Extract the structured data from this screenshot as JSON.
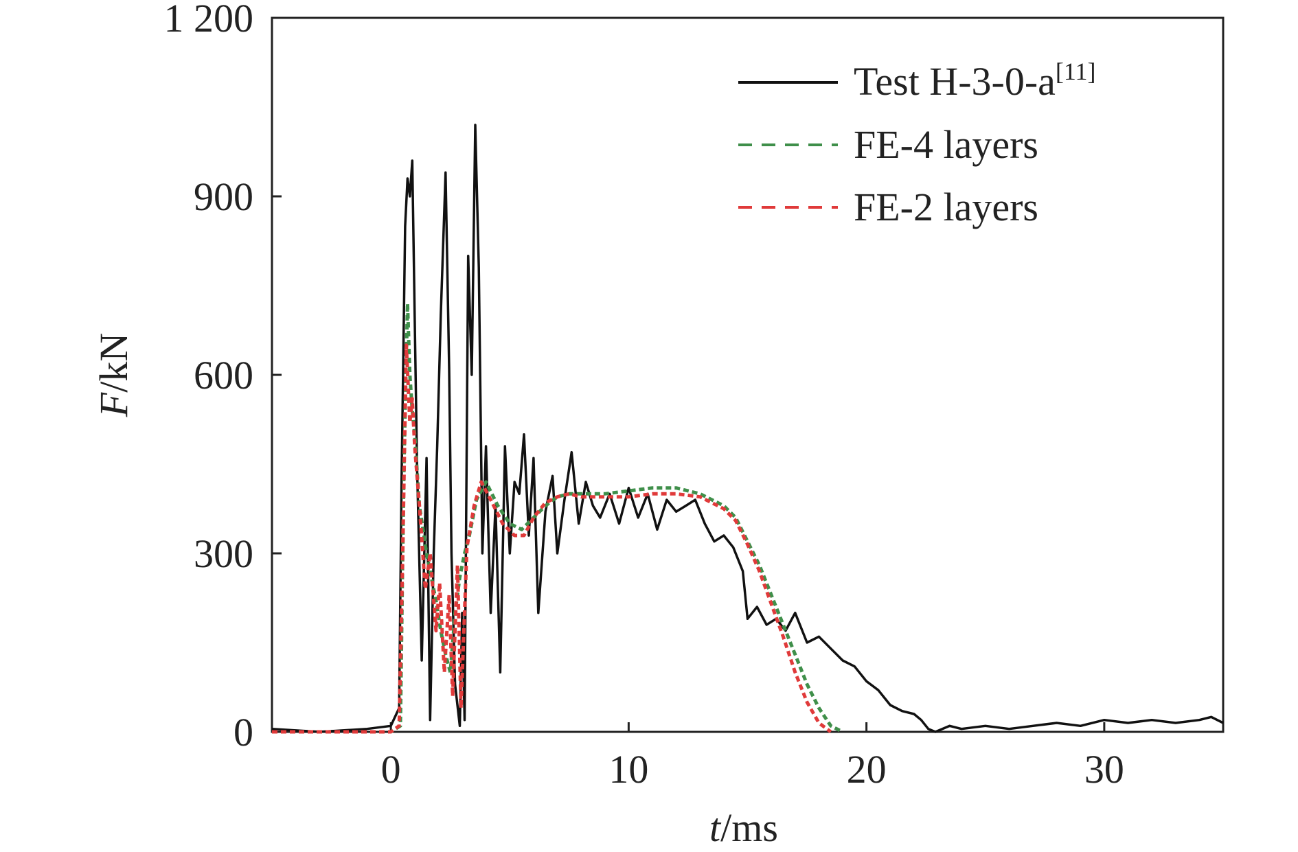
{
  "chart_data": {
    "type": "line",
    "title": "",
    "xlabel": {
      "var": "t",
      "unit": "/ms"
    },
    "ylabel": {
      "var": "F",
      "unit": "/kN"
    },
    "xlim": [
      -5,
      35
    ],
    "ylim": [
      0,
      1200
    ],
    "x_ticks": [
      0,
      10,
      20,
      30
    ],
    "x_tick_labels": [
      "0",
      "10",
      "20",
      "30"
    ],
    "y_ticks": [
      0,
      300,
      600,
      900,
      1200
    ],
    "y_tick_labels": [
      "0",
      "300",
      "600",
      "900",
      "1 200"
    ],
    "grid": false,
    "legend_position": "top-right",
    "series": [
      {
        "name": "Test H-3-0-a",
        "name_superscript": "[11]",
        "color": "#111111",
        "style": "solid",
        "x": [
          -5,
          -3,
          -1,
          0,
          0.35,
          0.45,
          0.6,
          0.7,
          0.8,
          0.9,
          1.0,
          1.1,
          1.3,
          1.5,
          1.65,
          1.8,
          1.95,
          2.1,
          2.3,
          2.45,
          2.55,
          2.7,
          2.9,
          3.0,
          3.1,
          3.25,
          3.4,
          3.55,
          3.7,
          3.85,
          4.0,
          4.2,
          4.4,
          4.6,
          4.8,
          5.0,
          5.2,
          5.4,
          5.6,
          5.8,
          6.0,
          6.2,
          6.5,
          6.8,
          7.0,
          7.3,
          7.6,
          7.9,
          8.2,
          8.5,
          8.8,
          9.2,
          9.6,
          10.0,
          10.4,
          10.8,
          11.2,
          11.6,
          12.0,
          12.4,
          12.8,
          13.2,
          13.6,
          14.0,
          14.4,
          14.8,
          15.0,
          15.4,
          15.8,
          16.2,
          16.6,
          17.0,
          17.5,
          18.0,
          18.5,
          19.0,
          19.5,
          20.0,
          20.5,
          21.0,
          21.5,
          22.0,
          22.3,
          22.6,
          22.9,
          23.5,
          24.0,
          25.0,
          26.0,
          27.0,
          28.0,
          29.0,
          30.0,
          31.0,
          32.0,
          33.0,
          34.0,
          34.5,
          35.0
        ],
        "y": [
          5,
          0,
          5,
          10,
          40,
          420,
          850,
          930,
          900,
          960,
          700,
          450,
          120,
          460,
          20,
          300,
          480,
          700,
          940,
          610,
          300,
          80,
          10,
          200,
          20,
          800,
          600,
          1020,
          780,
          300,
          480,
          200,
          380,
          100,
          480,
          300,
          420,
          400,
          500,
          330,
          460,
          200,
          370,
          430,
          300,
          390,
          470,
          350,
          420,
          380,
          360,
          400,
          350,
          410,
          360,
          400,
          340,
          390,
          370,
          380,
          390,
          350,
          320,
          330,
          310,
          270,
          190,
          210,
          180,
          190,
          170,
          200,
          150,
          160,
          140,
          120,
          110,
          85,
          70,
          45,
          35,
          30,
          20,
          5,
          0,
          10,
          5,
          10,
          5,
          10,
          15,
          10,
          20,
          15,
          20,
          15,
          20,
          25,
          15
        ]
      },
      {
        "name": "FE-4 layers",
        "color": "#3f8f4a",
        "style": "dashed",
        "x": [
          -5,
          0,
          0.4,
          0.55,
          0.7,
          0.8,
          0.9,
          1.0,
          1.2,
          1.5,
          1.7,
          1.9,
          2.1,
          2.3,
          2.5,
          2.7,
          2.9,
          3.1,
          3.3,
          3.6,
          4.0,
          4.5,
          5.0,
          5.5,
          6.0,
          6.5,
          7.0,
          7.5,
          8.0,
          9.0,
          10.0,
          11.0,
          12.0,
          13.0,
          14.0,
          14.5,
          15.0,
          15.5,
          16.0,
          16.5,
          17.0,
          17.5,
          18.0,
          18.5,
          19.0
        ],
        "y": [
          0,
          0,
          10,
          450,
          720,
          600,
          540,
          500,
          380,
          300,
          260,
          220,
          170,
          130,
          100,
          200,
          260,
          300,
          330,
          390,
          420,
          380,
          350,
          340,
          360,
          380,
          395,
          400,
          400,
          400,
          405,
          410,
          410,
          400,
          380,
          360,
          320,
          280,
          230,
          180,
          130,
          80,
          40,
          10,
          0
        ]
      },
      {
        "name": "FE-2 layers",
        "color": "#e03a3a",
        "style": "dashed",
        "x": [
          -5,
          0,
          0.35,
          0.5,
          0.65,
          0.8,
          0.9,
          1.0,
          1.2,
          1.45,
          1.65,
          1.9,
          2.05,
          2.25,
          2.45,
          2.6,
          2.8,
          2.95,
          3.2,
          3.5,
          3.8,
          4.2,
          4.7,
          5.2,
          5.6,
          6.0,
          6.5,
          7.0,
          7.5,
          8.0,
          9.0,
          10.0,
          11.0,
          12.0,
          13.0,
          14.0,
          14.5,
          15.0,
          15.5,
          16.0,
          16.5,
          17.0,
          17.5,
          18.0,
          18.5
        ],
        "y": [
          0,
          0,
          10,
          300,
          650,
          520,
          560,
          480,
          380,
          240,
          300,
          170,
          250,
          100,
          230,
          60,
          280,
          40,
          310,
          380,
          420,
          390,
          350,
          330,
          330,
          360,
          385,
          395,
          400,
          395,
          395,
          395,
          400,
          400,
          395,
          375,
          355,
          315,
          270,
          215,
          160,
          100,
          50,
          15,
          0
        ]
      }
    ]
  }
}
